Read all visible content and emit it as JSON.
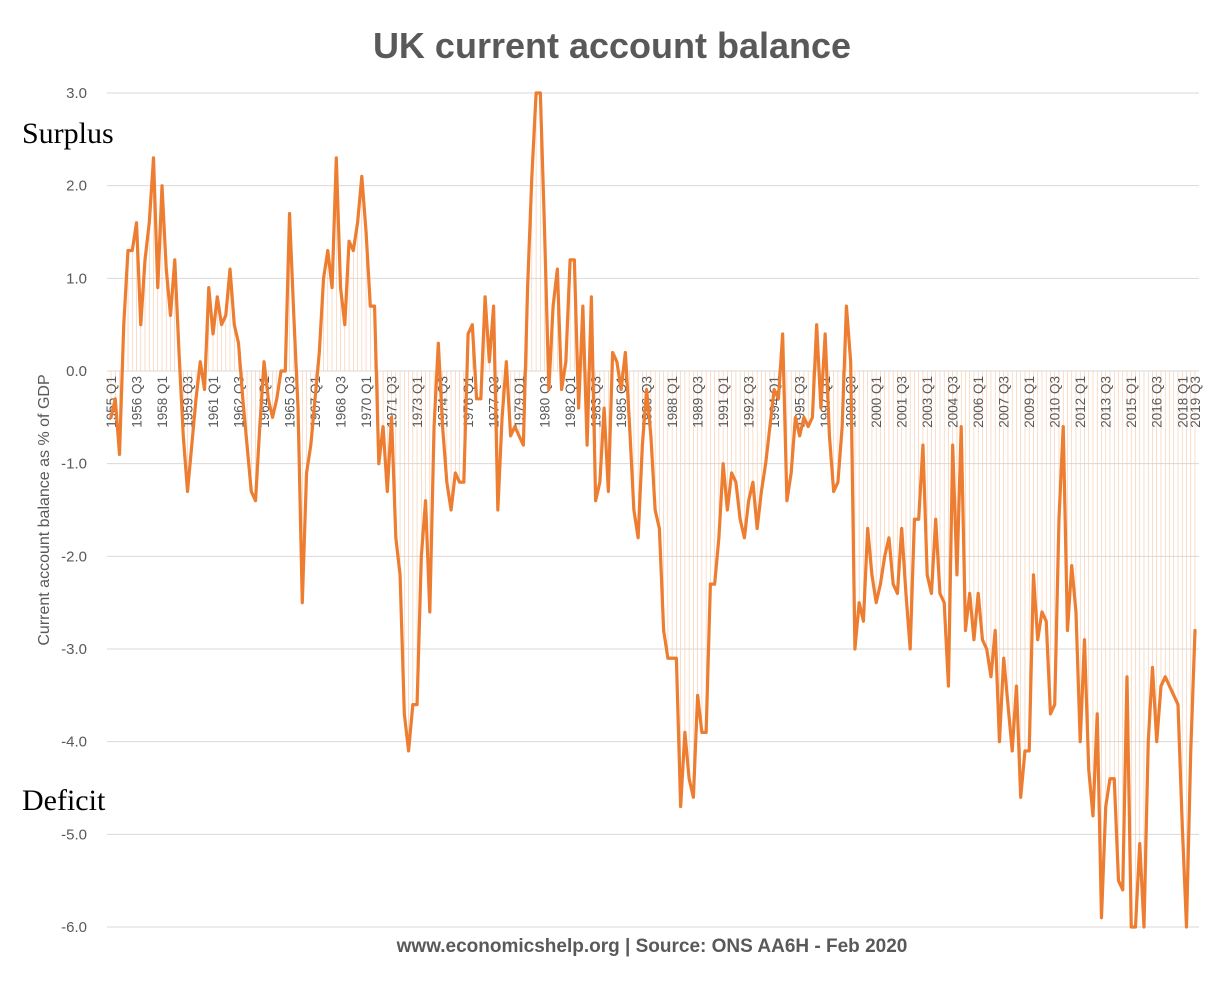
{
  "chart_data": {
    "type": "line",
    "title": "UK current account balance",
    "ylabel": "Current account balance as % of GDP",
    "xlabel": "",
    "ylim": [
      -6.0,
      3.0
    ],
    "yticks": [
      "3.0",
      "2.0",
      "1.0",
      "0.0",
      "-1.0",
      "-2.0",
      "-3.0",
      "-4.0",
      "-5.0",
      "-6.0"
    ],
    "grid": true,
    "legend": "none",
    "color": "#ed7d31",
    "annotations": {
      "top": "Surplus",
      "bottom": "Deficit"
    },
    "footer": "www.economicshelp.org | Source: ONS AA6H - Feb 2020",
    "x_tick_labels": [
      "1955 Q1",
      "1956 Q3",
      "1958 Q1",
      "1959 Q3",
      "1961 Q1",
      "1962 Q3",
      "1964 Q1",
      "1965 Q3",
      "1967 Q1",
      "1968 Q3",
      "1970 Q1",
      "1971 Q3",
      "1973 Q1",
      "1974 Q3",
      "1976 Q1",
      "1977 Q3",
      "1979 Q1",
      "1980 Q3",
      "1982 Q1",
      "1983 Q3",
      "1985 Q1",
      "1986 Q3",
      "1988 Q1",
      "1989 Q3",
      "1991 Q1",
      "1992 Q3",
      "1994 Q1",
      "1995 Q3",
      "1997 Q1",
      "1998 Q3",
      "2000 Q1",
      "2001 Q3",
      "2003 Q1",
      "2004 Q3",
      "2006 Q1",
      "2007 Q3",
      "2009 Q1",
      "2010 Q3",
      "2012 Q1",
      "2013 Q3",
      "2015 Q1",
      "2016 Q3",
      "2018 Q1",
      "2019 Q3"
    ],
    "series": [
      {
        "name": "",
        "start": "1955 Q1",
        "end": "2019 Q3",
        "values": [
          -0.5,
          -0.3,
          -0.9,
          0.5,
          1.3,
          1.3,
          1.6,
          0.5,
          1.2,
          1.6,
          2.3,
          0.9,
          2.0,
          1.1,
          0.6,
          1.2,
          0.2,
          -0.7,
          -1.3,
          -0.8,
          -0.3,
          0.1,
          -0.2,
          0.9,
          0.4,
          0.8,
          0.5,
          0.6,
          1.1,
          0.5,
          0.3,
          -0.3,
          -0.8,
          -1.3,
          -1.4,
          -0.6,
          0.1,
          -0.3,
          -0.5,
          -0.3,
          0.0,
          0.0,
          1.7,
          0.6,
          -0.4,
          -2.5,
          -1.1,
          -0.8,
          -0.3,
          0.2,
          1.0,
          1.3,
          0.9,
          2.3,
          0.9,
          0.5,
          1.4,
          1.3,
          1.6,
          2.1,
          1.5,
          0.7,
          0.7,
          -1.0,
          -0.6,
          -1.3,
          -0.5,
          -1.8,
          -2.2,
          -3.7,
          -4.1,
          -3.6,
          -3.6,
          -2.0,
          -1.4,
          -2.6,
          -0.6,
          0.3,
          -0.6,
          -1.2,
          -1.5,
          -1.1,
          -1.2,
          -1.2,
          0.4,
          0.5,
          -0.3,
          -0.3,
          0.8,
          0.1,
          0.7,
          -1.5,
          -0.5,
          0.1,
          -0.7,
          -0.6,
          -0.7,
          -0.8,
          0.9,
          2.1,
          3.0,
          3.0,
          1.5,
          -0.2,
          0.7,
          1.1,
          -0.2,
          0.1,
          1.2,
          1.2,
          -0.4,
          0.7,
          -0.8,
          0.8,
          -1.4,
          -1.2,
          -0.4,
          -1.3,
          0.2,
          0.1,
          -0.2,
          0.2,
          -0.6,
          -1.5,
          -1.8,
          -0.8,
          -0.2,
          -0.7,
          -1.5,
          -1.7,
          -2.8,
          -3.1,
          -3.1,
          -3.1,
          -4.7,
          -3.9,
          -4.4,
          -4.6,
          -3.5,
          -3.9,
          -3.9,
          -2.3,
          -2.3,
          -1.8,
          -1.0,
          -1.5,
          -1.1,
          -1.2,
          -1.6,
          -1.8,
          -1.4,
          -1.2,
          -1.7,
          -1.3,
          -1.0,
          -0.6,
          -0.2,
          -0.3,
          0.4,
          -1.4,
          -1.1,
          -0.5,
          -0.7,
          -0.5,
          -0.6,
          -0.5,
          0.5,
          -0.4,
          0.4,
          -0.7,
          -1.3,
          -1.2,
          -0.6,
          0.7,
          0.1,
          -3.0,
          -2.5,
          -2.7,
          -1.7,
          -2.2,
          -2.5,
          -2.3,
          -2.0,
          -1.8,
          -2.3,
          -2.4,
          -1.7,
          -2.4,
          -3.0,
          -1.6,
          -1.6,
          -0.8,
          -2.2,
          -2.4,
          -1.6,
          -2.4,
          -2.5,
          -3.4,
          -0.8,
          -2.2,
          -0.6,
          -2.8,
          -2.4,
          -2.9,
          -2.4,
          -2.9,
          -3.0,
          -3.3,
          -2.8,
          -4.0,
          -3.1,
          -3.6,
          -4.1,
          -3.4,
          -4.6,
          -4.1,
          -4.1,
          -2.2,
          -2.9,
          -2.6,
          -2.7,
          -3.7,
          -3.6,
          -1.6,
          -0.6,
          -2.8,
          -2.1,
          -2.6,
          -4.0,
          -2.9,
          -4.3,
          -4.8,
          -3.7,
          -5.9,
          -4.7,
          -4.4,
          -4.4,
          -5.5,
          -5.6,
          -3.3,
          -6.0,
          -6.0,
          -5.1,
          -6.0,
          -4.0,
          -3.2,
          -4.0,
          -3.4,
          -3.3,
          -3.4,
          -3.5,
          -3.6,
          -4.9,
          -6.0,
          -4.1,
          -2.8
        ]
      }
    ]
  }
}
